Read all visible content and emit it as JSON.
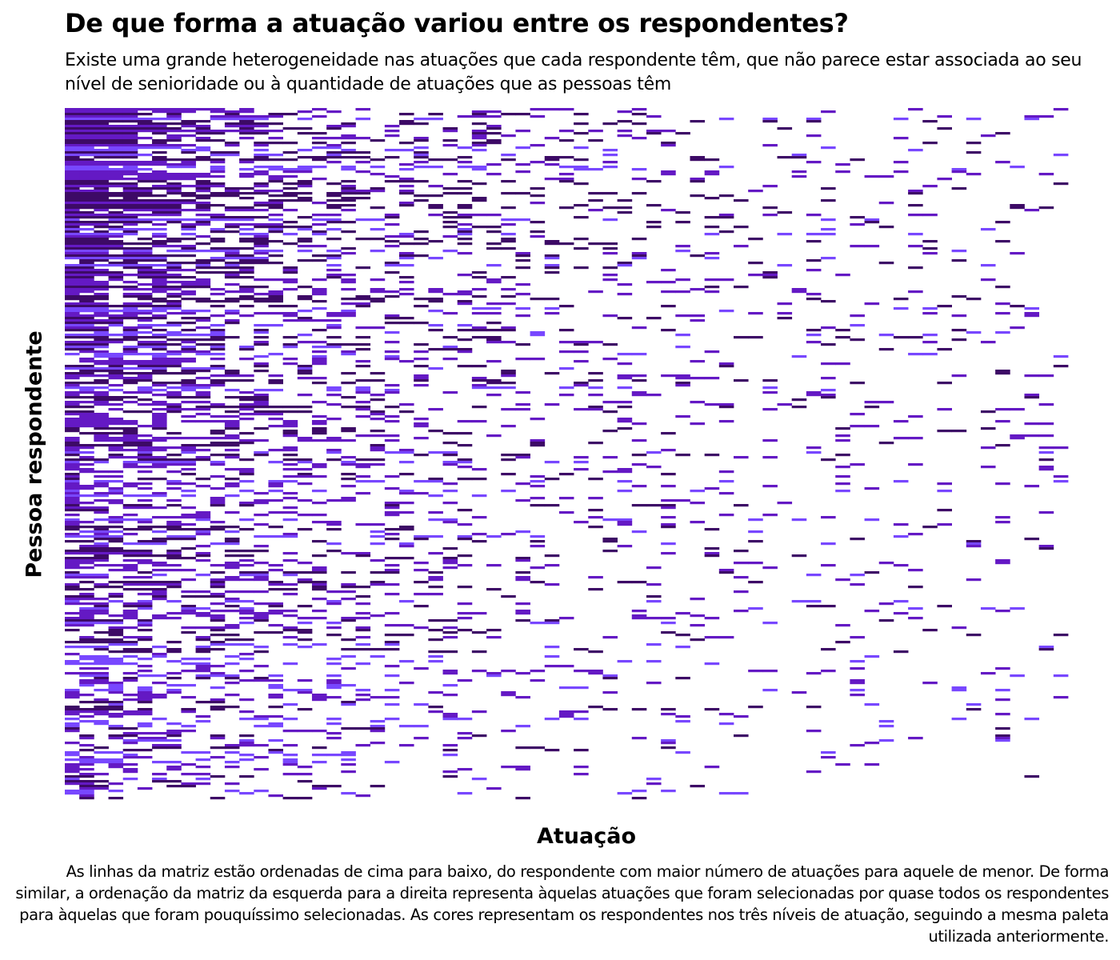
{
  "chart_data": {
    "type": "heatmap",
    "title": "De que forma a atuação variou entre os respondentes?",
    "subtitle": "Existe uma grande heterogeneidade nas atuações que cada respondente têm, que não parece estar associada ao seu nível de senioridade ou à quantidade de atuações que as pessoas têm",
    "xlabel": "Atuação",
    "ylabel": "Pessoa respondente",
    "caption": "As linhas da matriz estão ordenadas de cima para baixo, do respondente com maior número de atuações para aquele de menor. De forma similar, a ordenação da matriz da esquerda para a direita representa àquelas atuações que foram selecionadas por quase todos os respondentes para àquelas que foram pouquíssimo selecionadas. As cores representam os respondentes nos três níveis de atuação, seguindo a mesma paleta utilizada anteriormente.",
    "legend": "none",
    "grid": false,
    "matrix": {
      "rows": 288,
      "columns": 69,
      "row_order": "descending number of atuações",
      "column_order": "descending selection frequency"
    },
    "colors": {
      "level_1": "#3d0a66",
      "level_2": "#6419c4",
      "level_3": "#7847ff"
    }
  }
}
